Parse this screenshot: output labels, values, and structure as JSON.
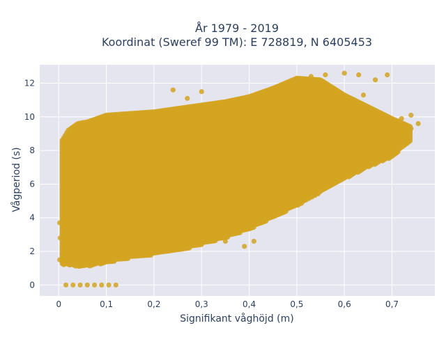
{
  "chart_data": {
    "type": "scatter",
    "title_line1": "År 1979 - 2019",
    "title_line2": "Koordinat (Sweref 99 TM): E 728819, N 6405453",
    "xlabel": "Signifikant våghöjd (m)",
    "ylabel": "Vågperiod (s)",
    "xlim": [
      -0.04,
      0.79
    ],
    "ylim": [
      -0.65,
      13.1
    ],
    "xticks": [
      0,
      0.1,
      0.2,
      0.3,
      0.4,
      0.5,
      0.6,
      0.7
    ],
    "xtick_labels": [
      "0",
      "0,1",
      "0,2",
      "0,3",
      "0,4",
      "0,5",
      "0,6",
      "0,7"
    ],
    "yticks": [
      0,
      2,
      4,
      6,
      8,
      10,
      12
    ],
    "ytick_labels": [
      "0",
      "2",
      "4",
      "6",
      "8",
      "10",
      "12"
    ],
    "grid": true,
    "colors": {
      "marker": "#d4a421",
      "plot_bg": "#e5e5f0",
      "grid": "#ffffff",
      "text": "#2a3f5f"
    },
    "envelope": {
      "x": [
        0.007,
        0.02,
        0.04,
        0.06,
        0.08,
        0.1,
        0.15,
        0.2,
        0.25,
        0.3,
        0.35,
        0.4,
        0.45,
        0.5,
        0.55,
        0.6,
        0.65,
        0.7,
        0.74
      ],
      "y_min": [
        1.2,
        1.2,
        1.1,
        1.1,
        1.2,
        1.3,
        1.6,
        1.8,
        2.0,
        2.4,
        2.8,
        3.3,
        4.0,
        4.7,
        5.5,
        6.3,
        7.0,
        7.6,
        8.6
      ],
      "y_max": [
        8.6,
        9.2,
        9.6,
        9.7,
        9.9,
        10.1,
        10.2,
        10.3,
        10.5,
        10.7,
        10.9,
        11.2,
        11.7,
        12.3,
        12.2,
        11.3,
        10.6,
        9.9,
        9.4
      ]
    },
    "outlier_points": [
      {
        "x": 0.015,
        "y": 0.0
      },
      {
        "x": 0.03,
        "y": 0.0
      },
      {
        "x": 0.045,
        "y": 0.0
      },
      {
        "x": 0.06,
        "y": 0.0
      },
      {
        "x": 0.075,
        "y": 0.0
      },
      {
        "x": 0.09,
        "y": 0.0
      },
      {
        "x": 0.105,
        "y": 0.0
      },
      {
        "x": 0.12,
        "y": 0.0
      },
      {
        "x": 0.002,
        "y": 1.5
      },
      {
        "x": 0.003,
        "y": 2.8
      },
      {
        "x": 0.002,
        "y": 3.7
      },
      {
        "x": 0.39,
        "y": 2.3
      },
      {
        "x": 0.41,
        "y": 2.6
      },
      {
        "x": 0.35,
        "y": 2.6
      },
      {
        "x": 0.24,
        "y": 11.6
      },
      {
        "x": 0.3,
        "y": 11.5
      },
      {
        "x": 0.27,
        "y": 11.1
      },
      {
        "x": 0.53,
        "y": 12.4
      },
      {
        "x": 0.56,
        "y": 12.5
      },
      {
        "x": 0.6,
        "y": 12.6
      },
      {
        "x": 0.63,
        "y": 12.5
      },
      {
        "x": 0.69,
        "y": 12.5
      },
      {
        "x": 0.665,
        "y": 12.2
      },
      {
        "x": 0.64,
        "y": 11.3
      },
      {
        "x": 0.66,
        "y": 10.3
      },
      {
        "x": 0.685,
        "y": 10.1
      },
      {
        "x": 0.74,
        "y": 10.1
      },
      {
        "x": 0.755,
        "y": 9.6
      },
      {
        "x": 0.72,
        "y": 9.9
      },
      {
        "x": 0.74,
        "y": 9.3
      },
      {
        "x": 0.7,
        "y": 9.5
      },
      {
        "x": 0.71,
        "y": 9.2
      }
    ]
  }
}
